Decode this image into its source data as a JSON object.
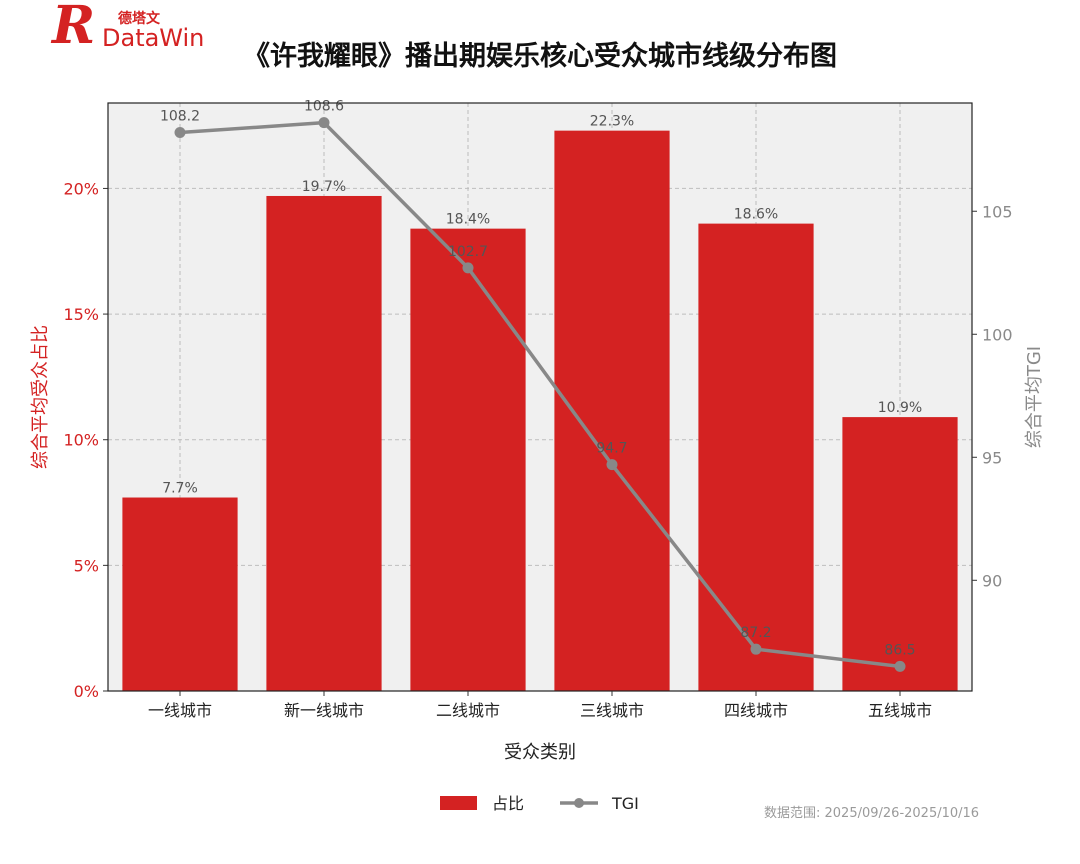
{
  "logo": {
    "mark": "R",
    "brand_cn": "德塔文",
    "brand_en": "DataWin"
  },
  "colors": {
    "bar": "#d42222",
    "line": "#888888",
    "left_axis": "#d42222",
    "right_axis": "#8a8a8a",
    "plot_bg": "#f0f0f0",
    "grid": "#bdbdbd"
  },
  "source_note": "数据范围: 2025/09/26-2025/10/16",
  "chart_data": {
    "type": "bar",
    "title": "《许我耀眼》播出期娱乐核心受众城市线级分布图",
    "xlabel": "受众类别",
    "ylabel": "综合平均受众占比",
    "y2label": "综合平均TGI",
    "categories": [
      "一线城市",
      "新一线城市",
      "二线城市",
      "三线城市",
      "四线城市",
      "五线城市"
    ],
    "series": [
      {
        "name": "占比",
        "kind": "bar",
        "axis": "left",
        "values": [
          7.7,
          19.7,
          18.4,
          22.3,
          18.6,
          10.9
        ],
        "labels": [
          "7.7%",
          "19.7%",
          "18.4%",
          "22.3%",
          "18.6%",
          "10.9%"
        ]
      },
      {
        "name": "TGI",
        "kind": "line",
        "axis": "right",
        "values": [
          108.2,
          108.6,
          102.7,
          94.7,
          87.2,
          86.5
        ],
        "labels": [
          "108.2",
          "108.6",
          "102.7",
          "94.7",
          "87.2",
          "86.5"
        ]
      }
    ],
    "ylim": [
      0,
      23.4
    ],
    "y2lim": [
      85.5,
      109.4
    ],
    "yticks": [
      0,
      5,
      10,
      15,
      20
    ],
    "ytick_labels": [
      "0%",
      "5%",
      "10%",
      "15%",
      "20%"
    ],
    "y2ticks": [
      90,
      95,
      100,
      105
    ],
    "y2tick_labels": [
      "90",
      "95",
      "100",
      "105"
    ],
    "grid": true,
    "legend": {
      "position": "bottom-center",
      "items": [
        "占比",
        "TGI"
      ]
    }
  }
}
